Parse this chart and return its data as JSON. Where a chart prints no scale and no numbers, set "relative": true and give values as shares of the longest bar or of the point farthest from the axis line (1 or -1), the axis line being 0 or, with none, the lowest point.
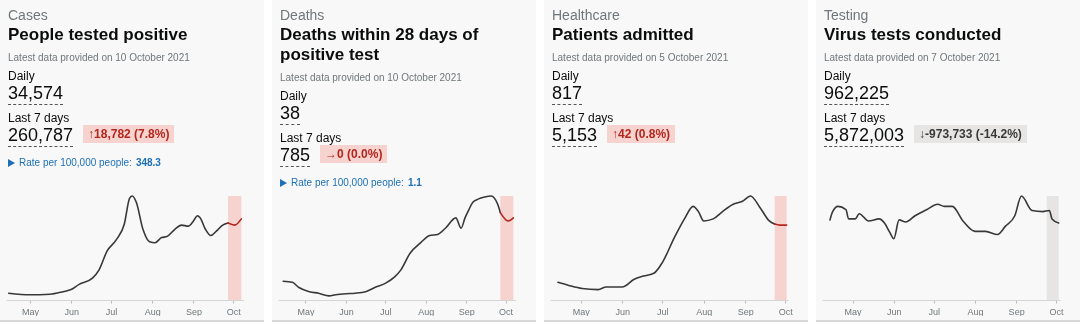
{
  "chart_data": [
    {
      "type": "line",
      "title": "People tested positive",
      "subtitle": "Latest data provided on 10 October 2021",
      "annotations": [
        "Cases",
        "Daily",
        "34,574",
        "Last 7 days",
        "260,787",
        "↑18,782 (7.8%)",
        "Rate per 100,000 people:",
        "348.3"
      ],
      "relative": true,
      "tick_labels": "x",
      "xlim": [
        "2021-04-13",
        "2021-10-09"
      ],
      "xticks": [
        {
          "value": "2021-05-01",
          "label": "May"
        },
        {
          "value": "2021-06-01",
          "label": "Jun"
        },
        {
          "value": "2021-07-01",
          "label": "Jul"
        },
        {
          "value": "2021-08-01",
          "label": "Aug"
        },
        {
          "value": "2021-09-01",
          "label": "Sep"
        },
        {
          "value": "2021-10-01",
          "label": "Oct"
        }
      ],
      "bands": [
        {
          "axis": "x",
          "from": "2021-09-27",
          "to": "2021-10-07",
          "color": "#f6d3cf"
        }
      ],
      "series": [
        {
          "color": "#383838",
          "x": [
            "2021-04-15",
            "2021-05-01",
            "2021-05-16",
            "2021-05-26",
            "2021-06-01",
            "2021-06-07",
            "2021-06-17",
            "2021-06-22",
            "2021-06-28",
            "2021-07-05",
            "2021-07-11",
            "2021-07-15",
            "2021-07-17",
            "2021-07-20",
            "2021-07-25",
            "2021-07-30",
            "2021-08-03",
            "2021-08-08",
            "2021-08-12",
            "2021-08-18",
            "2021-08-23",
            "2021-08-28",
            "2021-09-01",
            "2021-09-04",
            "2021-09-06",
            "2021-09-10",
            "2021-09-14",
            "2021-09-18",
            "2021-09-23",
            "2021-09-27"
          ],
          "values": [
            0.065,
            0.05,
            0.055,
            0.08,
            0.1,
            0.15,
            0.21,
            0.29,
            0.47,
            0.58,
            0.73,
            0.98,
            1,
            0.94,
            0.68,
            0.56,
            0.55,
            0.6,
            0.61,
            0.68,
            0.72,
            0.71,
            0.76,
            0.81,
            0.79,
            0.68,
            0.62,
            0.66,
            0.72,
            0.74
          ]
        },
        {
          "color": "#b3261e",
          "x": [
            "2021-09-27",
            "2021-10-02",
            "2021-10-07"
          ],
          "values": [
            0.74,
            0.72,
            0.78
          ]
        }
      ]
    },
    {
      "type": "line",
      "title": "Deaths within 28 days of positive test",
      "subtitle": "Latest data provided on 10 October 2021",
      "annotations": [
        "Deaths",
        "Daily",
        "38",
        "Last 7 days",
        "785",
        "→0 (0.0%)",
        "Rate per 100,000 people:",
        "1.1"
      ],
      "relative": true,
      "tick_labels": "x",
      "xlim": [
        "2021-04-10",
        "2021-10-09"
      ],
      "xticks": [
        {
          "value": "2021-05-01",
          "label": "May"
        },
        {
          "value": "2021-06-01",
          "label": "Jun"
        },
        {
          "value": "2021-07-01",
          "label": "Jul"
        },
        {
          "value": "2021-08-01",
          "label": "Aug"
        },
        {
          "value": "2021-09-01",
          "label": "Sep"
        },
        {
          "value": "2021-10-01",
          "label": "Oct"
        }
      ],
      "bands": [
        {
          "axis": "x",
          "from": "2021-09-27",
          "to": "2021-10-07",
          "color": "#f6d3cf"
        }
      ],
      "series": [
        {
          "color": "#383838",
          "x": [
            "2021-04-14",
            "2021-04-21",
            "2021-04-26",
            "2021-05-04",
            "2021-05-11",
            "2021-05-19",
            "2021-05-24",
            "2021-06-01",
            "2021-06-08",
            "2021-06-16",
            "2021-06-23",
            "2021-07-01",
            "2021-07-08",
            "2021-07-13",
            "2021-07-20",
            "2021-07-28",
            "2021-08-04",
            "2021-08-10",
            "2021-08-16",
            "2021-08-24",
            "2021-08-28",
            "2021-08-31",
            "2021-09-03",
            "2021-09-06",
            "2021-09-10",
            "2021-09-15",
            "2021-09-20",
            "2021-09-25",
            "2021-09-27"
          ],
          "values": [
            0.18,
            0.17,
            0.12,
            0.08,
            0.065,
            0.04,
            0.05,
            0.06,
            0.065,
            0.08,
            0.12,
            0.16,
            0.22,
            0.29,
            0.45,
            0.55,
            0.62,
            0.63,
            0.69,
            0.79,
            0.69,
            0.79,
            0.87,
            0.94,
            0.97,
            0.99,
            1,
            0.92,
            0.84
          ]
        },
        {
          "color": "#b3261e",
          "x": [
            "2021-09-27",
            "2021-10-03",
            "2021-10-07"
          ],
          "values": [
            0.84,
            0.76,
            0.79
          ]
        }
      ]
    },
    {
      "type": "line",
      "title": "Patients admitted",
      "subtitle": "Latest data provided on 5 October 2021",
      "annotations": [
        "Healthcare",
        "Daily",
        "817",
        "Last 7 days",
        "5,153",
        "↑42 (0.8%)"
      ],
      "relative": true,
      "tick_labels": "x",
      "xlim": [
        "2021-04-08",
        "2021-10-03"
      ],
      "xticks": [
        {
          "value": "2021-05-01",
          "label": "May"
        },
        {
          "value": "2021-06-01",
          "label": "Jun"
        },
        {
          "value": "2021-07-01",
          "label": "Jul"
        },
        {
          "value": "2021-08-01",
          "label": "Aug"
        },
        {
          "value": "2021-09-01",
          "label": "Sep"
        },
        {
          "value": "2021-10-01",
          "label": "Oct"
        }
      ],
      "bands": [
        {
          "axis": "x",
          "from": "2021-09-23",
          "to": "2021-10-02",
          "color": "#f6d3cf"
        }
      ],
      "series": [
        {
          "color": "#383838",
          "x": [
            "2021-04-14",
            "2021-04-22",
            "2021-05-02",
            "2021-05-14",
            "2021-05-20",
            "2021-06-01",
            "2021-06-10",
            "2021-06-17",
            "2021-06-25",
            "2021-07-01",
            "2021-07-10",
            "2021-07-18",
            "2021-07-24",
            "2021-07-28",
            "2021-08-01",
            "2021-08-08",
            "2021-08-15",
            "2021-08-23",
            "2021-08-30",
            "2021-09-05",
            "2021-09-12",
            "2021-09-19",
            "2021-09-23"
          ],
          "values": [
            0.17,
            0.14,
            0.11,
            0.1,
            0.125,
            0.125,
            0.2,
            0.23,
            0.26,
            0.36,
            0.6,
            0.79,
            0.9,
            0.85,
            0.76,
            0.78,
            0.85,
            0.92,
            0.95,
            1,
            0.89,
            0.76,
            0.73
          ]
        },
        {
          "color": "#b3261e",
          "x": [
            "2021-09-23",
            "2021-09-27",
            "2021-10-02"
          ],
          "values": [
            0.73,
            0.72,
            0.72
          ]
        }
      ]
    },
    {
      "type": "line",
      "title": "Virus tests conducted",
      "subtitle": "Latest data provided on 7 October 2021",
      "annotations": [
        "Testing",
        "Daily",
        "962,225",
        "Last 7 days",
        "5,872,003",
        "↓-973,733 (-14.2%)"
      ],
      "relative": true,
      "tick_labels": "x",
      "xlim": [
        "2021-04-08",
        "2021-10-04"
      ],
      "xticks": [
        {
          "value": "2021-05-01",
          "label": "May"
        },
        {
          "value": "2021-06-01",
          "label": "Jun"
        },
        {
          "value": "2021-07-01",
          "label": "Jul"
        },
        {
          "value": "2021-08-01",
          "label": "Aug"
        },
        {
          "value": "2021-09-01",
          "label": "Sep"
        },
        {
          "value": "2021-10-01",
          "label": "Oct"
        }
      ],
      "bands": [
        {
          "axis": "x",
          "from": "2021-09-24",
          "to": "2021-10-03",
          "color": "#e6e5e3"
        }
      ],
      "series": [
        {
          "color": "#383838",
          "x": [
            "2021-04-14",
            "2021-04-16",
            "2021-04-20",
            "2021-04-26",
            "2021-04-28",
            "2021-05-03",
            "2021-05-06",
            "2021-05-13",
            "2021-05-21",
            "2021-05-25",
            "2021-05-29",
            "2021-06-01",
            "2021-06-05",
            "2021-06-10",
            "2021-06-17",
            "2021-06-26",
            "2021-07-04",
            "2021-07-09",
            "2021-07-15",
            "2021-07-23",
            "2021-08-01",
            "2021-08-09",
            "2021-08-18",
            "2021-08-24",
            "2021-08-31",
            "2021-09-05",
            "2021-09-13",
            "2021-09-21",
            "2021-09-26",
            "2021-09-28",
            "2021-10-03"
          ],
          "values": [
            0.77,
            0.85,
            0.9,
            0.87,
            0.78,
            0.78,
            0.83,
            0.76,
            0.78,
            0.74,
            0.65,
            0.59,
            0.77,
            0.75,
            0.81,
            0.87,
            0.92,
            0.9,
            0.9,
            0.76,
            0.66,
            0.66,
            0.63,
            0.71,
            0.81,
            1,
            0.86,
            0.85,
            0.86,
            0.78,
            0.74
          ]
        }
      ]
    }
  ]
}
